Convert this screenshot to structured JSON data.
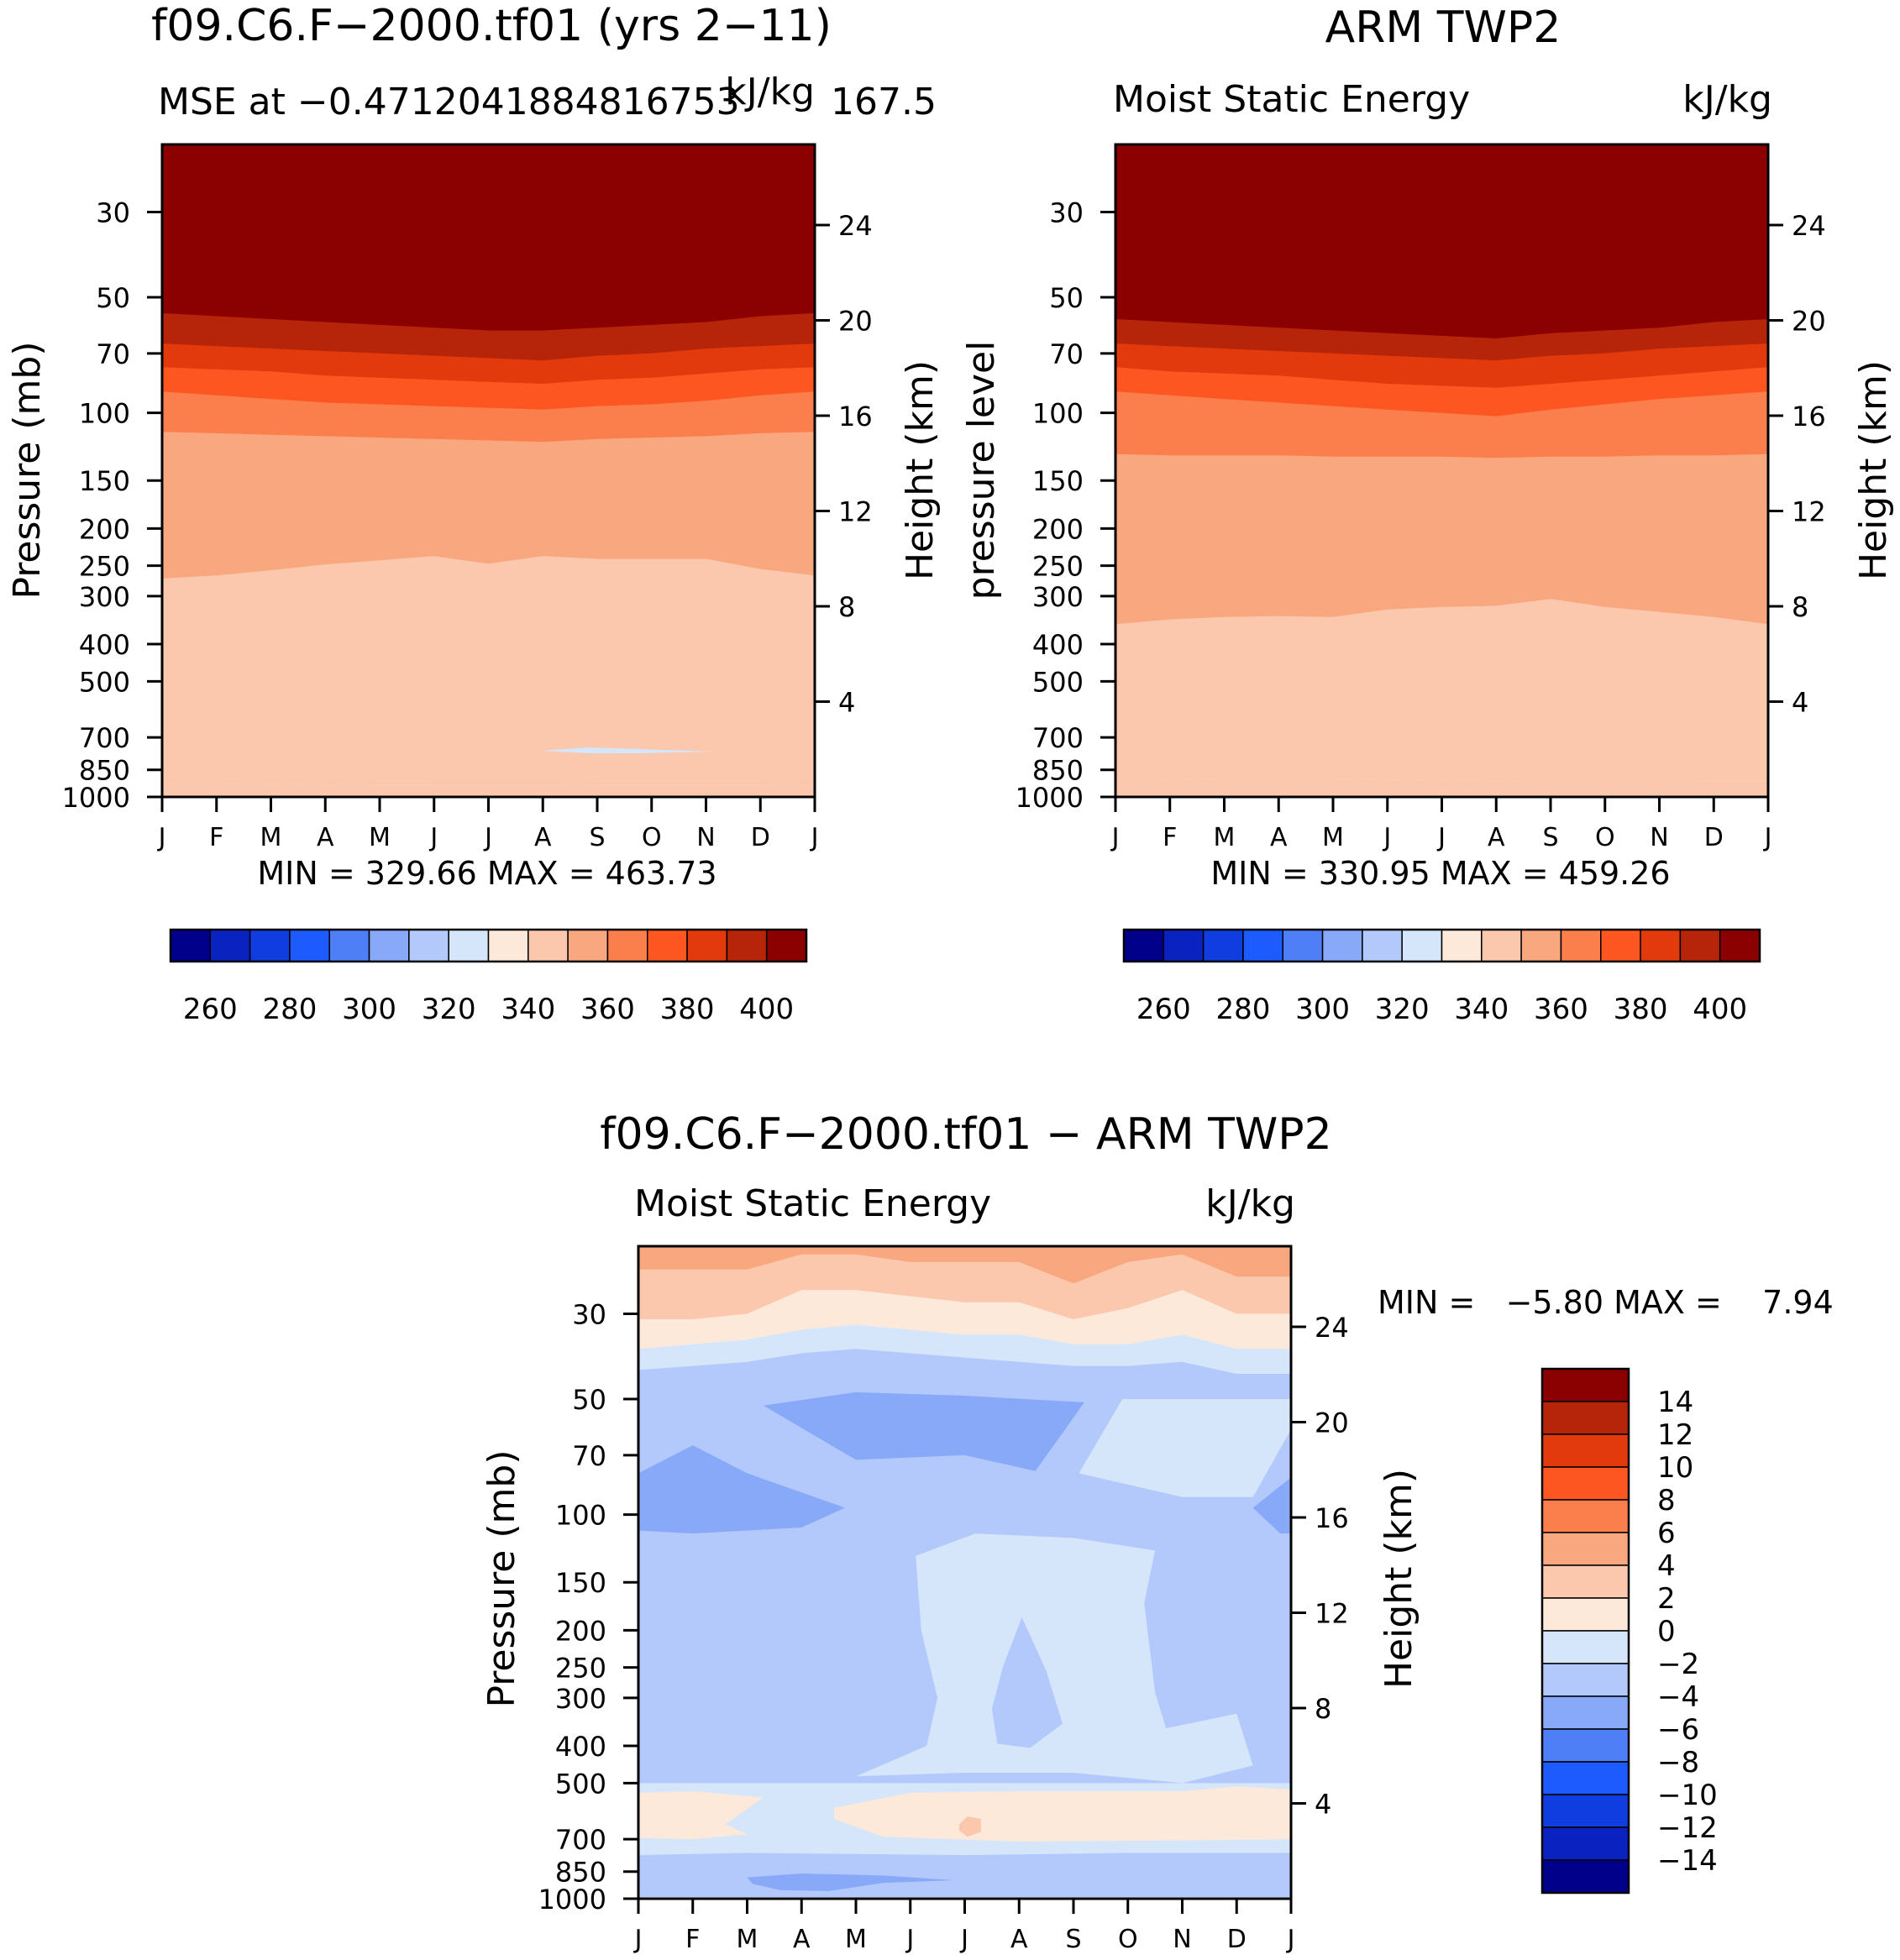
{
  "palette_abs": [
    "#00008b",
    "#0a22c0",
    "#0f3de0",
    "#1e5bff",
    "#4f7ff6",
    "#87a9f8",
    "#b3c9fb",
    "#d5e6fb",
    "#fde9d9",
    "#fbc8ae",
    "#f9a77f",
    "#fa7f4d",
    "#fd5621",
    "#e23a0c",
    "#b6250a",
    "#8b0000"
  ],
  "palette_diff": [
    "#00008b",
    "#0a22c0",
    "#0f3de0",
    "#1e5bff",
    "#4f7ff6",
    "#87a9f8",
    "#b3c9fb",
    "#d5e6fb",
    "#fde9d9",
    "#fbc8ae",
    "#f9a77f",
    "#fa7f4d",
    "#fd5621",
    "#e23a0c",
    "#b6250a",
    "#8b0000"
  ],
  "panels": [
    {
      "id": "model",
      "title": "f09.C6.F−2000.tf01 (yrs 2−11)",
      "subtitle_left": "MSE at −0.4712041884816753",
      "subtitle_right": "kJ/kg",
      "subtitle_extra": "167.5",
      "y_label_left": "Pressure (mb)",
      "y_label_right": "Height (km)",
      "minmax": "MIN = 329.66 MAX = 463.73",
      "colorbar_labels": [
        "260",
        "280",
        "300",
        "320",
        "340",
        "360",
        "380",
        "400"
      ]
    },
    {
      "id": "obs",
      "title": "ARM TWP2",
      "subtitle_left": "Moist Static Energy",
      "subtitle_right": "kJ/kg",
      "y_label_left": "pressure level",
      "y_label_right": "Height (km)",
      "minmax": "MIN = 330.95 MAX = 459.26",
      "colorbar_labels": [
        "260",
        "280",
        "300",
        "320",
        "340",
        "360",
        "380",
        "400"
      ]
    },
    {
      "id": "diff",
      "title": "f09.C6.F−2000.tf01 − ARM TWP2",
      "subtitle_left": "Moist Static Energy",
      "subtitle_right": "kJ/kg",
      "y_label_left": "Pressure (mb)",
      "y_label_right": "Height (km)",
      "minmax": "MIN =   −5.80 MAX =    7.94",
      "colorbar_labels": [
        "14",
        "12",
        "10",
        "8",
        "6",
        "4",
        "2",
        "0",
        "−2",
        "−4",
        "−6",
        "−8",
        "−10",
        "−12",
        "−14"
      ]
    }
  ],
  "chart_data": [
    {
      "type": "heatmap",
      "title": "f09.C6.F−2000.tf01 (yrs 2−11)",
      "variable": "MSE",
      "units": "kJ/kg",
      "x_ticks": [
        "J",
        "F",
        "M",
        "A",
        "M",
        "J",
        "J",
        "A",
        "S",
        "O",
        "N",
        "D",
        "J"
      ],
      "y_ticks_pressure": [
        30,
        50,
        70,
        100,
        150,
        200,
        250,
        300,
        400,
        500,
        700,
        850,
        1000
      ],
      "y_ticks_height": [
        24,
        20,
        16,
        12,
        8,
        4
      ],
      "ylim_pressure": [
        1000,
        20
      ],
      "levels": [
        250,
        260,
        270,
        280,
        290,
        300,
        310,
        320,
        330,
        340,
        350,
        360,
        370,
        380,
        390,
        400,
        410
      ],
      "min": 329.66,
      "max": 463.73,
      "months": [
        0,
        1,
        2,
        3,
        4,
        5,
        6,
        7,
        8,
        9,
        10,
        11,
        12
      ],
      "boundaries": [
        {
          "above": 340,
          "p": [
            935,
            925,
            928,
            933,
            935,
            935,
            936,
            936,
            933,
            933,
            933,
            933,
            935
          ]
        },
        {
          "above": 350,
          "p": [
            270,
            265,
            257,
            248,
            242,
            236,
            247,
            236,
            240,
            240,
            240,
            255,
            265
          ]
        },
        {
          "above": 360,
          "p": [
            112,
            113,
            114,
            115,
            116,
            117,
            118,
            119,
            117,
            116,
            115,
            113,
            112
          ]
        },
        {
          "above": 370,
          "p": [
            88,
            90,
            92,
            94,
            95,
            96,
            97,
            98,
            96,
            95,
            93,
            90,
            88
          ]
        },
        {
          "above": 380,
          "p": [
            76,
            77,
            78,
            80,
            81,
            82,
            83,
            84,
            82,
            81,
            79,
            77,
            76
          ]
        },
        {
          "above": 390,
          "p": [
            66,
            67,
            68,
            69,
            70,
            71,
            72,
            73,
            71,
            70,
            68,
            67,
            66
          ]
        },
        {
          "above": 400,
          "p": [
            55,
            56,
            57,
            58,
            59,
            60,
            61,
            61,
            60,
            59,
            58,
            56,
            55
          ]
        }
      ]
    },
    {
      "type": "heatmap",
      "title": "ARM TWP2",
      "variable": "Moist Static Energy",
      "units": "kJ/kg",
      "x_ticks": [
        "J",
        "F",
        "M",
        "A",
        "M",
        "J",
        "J",
        "A",
        "S",
        "O",
        "N",
        "D",
        "J"
      ],
      "y_ticks_pressure": [
        30,
        50,
        70,
        100,
        150,
        200,
        250,
        300,
        400,
        500,
        700,
        850,
        1000
      ],
      "y_ticks_height": [
        24,
        20,
        16,
        12,
        8,
        4
      ],
      "ylim_pressure": [
        1000,
        20
      ],
      "min": 330.95,
      "max": 459.26,
      "months": [
        0,
        1,
        2,
        3,
        4,
        5,
        6,
        7,
        8,
        9,
        10,
        11,
        12
      ],
      "boundaries": [
        {
          "above": 340,
          "p": [
            912,
            900,
            895,
            890,
            895,
            900,
            905,
            910,
            915,
            915,
            915,
            912,
            912
          ]
        },
        {
          "above": 350,
          "p": [
            355,
            345,
            340,
            338,
            340,
            325,
            320,
            318,
            305,
            320,
            330,
            340,
            355
          ]
        },
        {
          "above": 360,
          "p": [
            128,
            129,
            129,
            129,
            130,
            130,
            130,
            131,
            130,
            130,
            129,
            129,
            128
          ]
        },
        {
          "above": 370,
          "p": [
            88,
            90,
            92,
            94,
            96,
            98,
            100,
            102,
            98,
            95,
            92,
            90,
            88
          ]
        },
        {
          "above": 380,
          "p": [
            76,
            78,
            79,
            80,
            82,
            84,
            85,
            86,
            84,
            82,
            80,
            78,
            76
          ]
        },
        {
          "above": 390,
          "p": [
            66,
            67,
            68,
            69,
            70,
            71,
            72,
            73,
            71,
            70,
            68,
            67,
            66
          ]
        },
        {
          "above": 400,
          "p": [
            57,
            58,
            59,
            60,
            61,
            62,
            63,
            64,
            62,
            61,
            60,
            58,
            57
          ]
        }
      ]
    },
    {
      "type": "heatmap",
      "title": "f09.C6.F−2000.tf01 − ARM TWP2",
      "variable": "Moist Static Energy difference",
      "units": "kJ/kg",
      "x_ticks": [
        "J",
        "F",
        "M",
        "A",
        "M",
        "J",
        "J",
        "A",
        "S",
        "O",
        "N",
        "D",
        "J"
      ],
      "y_ticks_pressure": [
        30,
        50,
        70,
        100,
        150,
        200,
        250,
        300,
        400,
        500,
        700,
        850,
        1000
      ],
      "y_ticks_height": [
        24,
        20,
        16,
        12,
        8,
        4
      ],
      "ylim_pressure": [
        1000,
        20
      ],
      "levels": [
        -14,
        -12,
        -10,
        -8,
        -6,
        -4,
        -2,
        0,
        2,
        4,
        6,
        8,
        10,
        12,
        14
      ],
      "min": -5.8,
      "max": 7.94,
      "base_value_range": "-2 to -4",
      "regions": [
        {
          "range": "4 to 6",
          "top_p": 20,
          "bottom_p": [
            23,
            23,
            23,
            21,
            21,
            22,
            22,
            22,
            25,
            22,
            21,
            24,
            24
          ]
        },
        {
          "range": "2 to 4",
          "bottom_p": [
            31,
            31,
            30,
            26,
            26,
            27,
            28,
            28,
            31,
            29,
            26,
            30,
            30
          ]
        },
        {
          "range": "0 to 2",
          "bottom_p": [
            37,
            36,
            35,
            33,
            32,
            33,
            34,
            34,
            36,
            36,
            34,
            37,
            37
          ]
        },
        {
          "range": "0 to -2",
          "bottom_p": [
            42,
            41,
            40,
            38,
            37,
            38,
            39,
            40,
            41,
            41,
            40,
            43,
            43
          ]
        },
        {
          "range": "-4 to -6",
          "note": "pocket near 50-75 mb, Mar-Aug"
        },
        {
          "range": "-4 to -6",
          "note": "pocket near 70-110 mb, Jan-Apr"
        },
        {
          "range": "0 to -2",
          "note": "Jun-Oct column 110-400 mb, and Sep-Dec 50-110 mb"
        },
        {
          "range": "0 to 2",
          "note": "band 520-700 mb"
        },
        {
          "range": "2 to 4",
          "note": "small spot near 650 mb in Jul"
        },
        {
          "range": "-4 to -6",
          "note": "pocket near 870-960 mb, Feb-Jun"
        }
      ]
    }
  ]
}
